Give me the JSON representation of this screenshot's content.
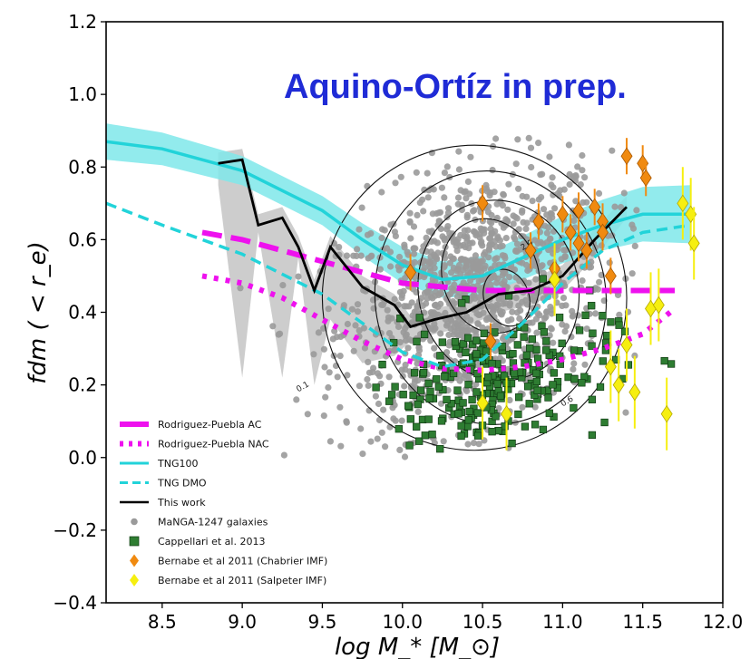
{
  "chart_data": {
    "type": "scatter",
    "annotation": "Aquino-Ortíz in prep.",
    "xlabel": "log M_* [M_⊙]",
    "ylabel": "fdm ( < r_e)",
    "xlim": [
      8.15,
      12.0
    ],
    "ylim": [
      -0.4,
      1.2
    ],
    "x_ticks": [
      "8.5",
      "9.0",
      "9.5",
      "10.0",
      "10.5",
      "11.0",
      "11.5",
      "12.0"
    ],
    "y_ticks": [
      "1.2",
      "1.0",
      "0.8",
      "0.6",
      "0.4",
      "0.2",
      "0.0",
      "−0.2",
      "−0.4"
    ],
    "grid": false,
    "legend_position": "bottom-left",
    "colors": {
      "rp_ac": "#ee11ee",
      "tng": "#22d3d9",
      "tng_band": "#7fe8ea",
      "manga": "#9a9a9a",
      "cappellari": "#2e7d32",
      "chabrier": "#f08a10",
      "salpeter": "#f6ef10",
      "this_work_band": "#c4c4c4"
    },
    "series": [
      {
        "name": "Rodriguez-Puebla AC",
        "style": "dashed-magenta",
        "x": [
          8.75,
          9.0,
          9.25,
          9.5,
          9.75,
          10.0,
          10.25,
          10.5,
          10.75,
          11.0,
          11.25,
          11.5,
          11.7
        ],
        "y": [
          0.62,
          0.6,
          0.57,
          0.54,
          0.51,
          0.48,
          0.47,
          0.46,
          0.46,
          0.46,
          0.46,
          0.46,
          0.46
        ]
      },
      {
        "name": "Rodriguez-Puebla NAC",
        "style": "dotted-magenta",
        "x": [
          8.75,
          9.0,
          9.25,
          9.5,
          9.75,
          10.0,
          10.25,
          10.5,
          10.75,
          11.0,
          11.25,
          11.5,
          11.7
        ],
        "y": [
          0.5,
          0.48,
          0.44,
          0.38,
          0.32,
          0.27,
          0.245,
          0.24,
          0.25,
          0.27,
          0.3,
          0.34,
          0.41
        ]
      },
      {
        "name": "TNG100",
        "style": "solid-cyan-band",
        "x": [
          8.15,
          8.5,
          9.0,
          9.5,
          9.75,
          10.0,
          10.25,
          10.5,
          10.75,
          11.0,
          11.25,
          11.5,
          11.8
        ],
        "y": [
          0.87,
          0.85,
          0.79,
          0.68,
          0.6,
          0.53,
          0.49,
          0.5,
          0.55,
          0.6,
          0.64,
          0.67,
          0.67
        ],
        "band_half_width": [
          0.05,
          0.045,
          0.04,
          0.04,
          0.045,
          0.05,
          0.05,
          0.055,
          0.06,
          0.065,
          0.07,
          0.075,
          0.08
        ]
      },
      {
        "name": "TNG DMO",
        "style": "dashed-cyan",
        "x": [
          8.15,
          8.5,
          9.0,
          9.5,
          9.75,
          10.0,
          10.25,
          10.5,
          10.75,
          11.0,
          11.25,
          11.5,
          11.8
        ],
        "y": [
          0.7,
          0.64,
          0.56,
          0.45,
          0.37,
          0.29,
          0.25,
          0.27,
          0.37,
          0.48,
          0.57,
          0.62,
          0.64
        ]
      },
      {
        "name": "This work",
        "style": "solid-black",
        "x": [
          8.85,
          9.0,
          9.1,
          9.25,
          9.35,
          9.45,
          9.55,
          9.75,
          9.95,
          10.05,
          10.2,
          10.4,
          10.6,
          10.8,
          11.0,
          11.2,
          11.4
        ],
        "y": [
          0.81,
          0.82,
          0.64,
          0.66,
          0.58,
          0.46,
          0.58,
          0.47,
          0.42,
          0.36,
          0.38,
          0.4,
          0.45,
          0.46,
          0.5,
          0.6,
          0.69
        ]
      },
      {
        "name": "MaNGA-1247 galaxies",
        "style": "grey-dots",
        "n_points": 1247
      },
      {
        "name": "Cappellari et al. 2013",
        "style": "green-squares",
        "n_points": 260
      },
      {
        "name": "Bernabe et al 2011 (Chabrier IMF)",
        "style": "orange-diamonds",
        "x": [
          10.05,
          10.5,
          10.55,
          10.8,
          10.85,
          10.95,
          11.0,
          11.05,
          11.1,
          11.1,
          11.15,
          11.2,
          11.25,
          11.3,
          11.4,
          11.5,
          11.52,
          11.25
        ],
        "y": [
          0.51,
          0.7,
          0.32,
          0.57,
          0.65,
          0.52,
          0.67,
          0.62,
          0.59,
          0.68,
          0.57,
          0.69,
          0.65,
          0.5,
          0.83,
          0.81,
          0.77,
          0.62
        ]
      },
      {
        "name": "Bernabe et al 2011 (Salpeter IMF)",
        "style": "yellow-diamonds",
        "x": [
          10.5,
          10.65,
          10.95,
          11.3,
          11.35,
          11.4,
          11.45,
          11.55,
          11.6,
          11.65,
          11.75,
          11.8,
          11.82
        ],
        "y": [
          0.15,
          0.12,
          0.49,
          0.25,
          0.2,
          0.31,
          0.18,
          0.41,
          0.42,
          0.12,
          0.7,
          0.67,
          0.59
        ]
      }
    ]
  }
}
